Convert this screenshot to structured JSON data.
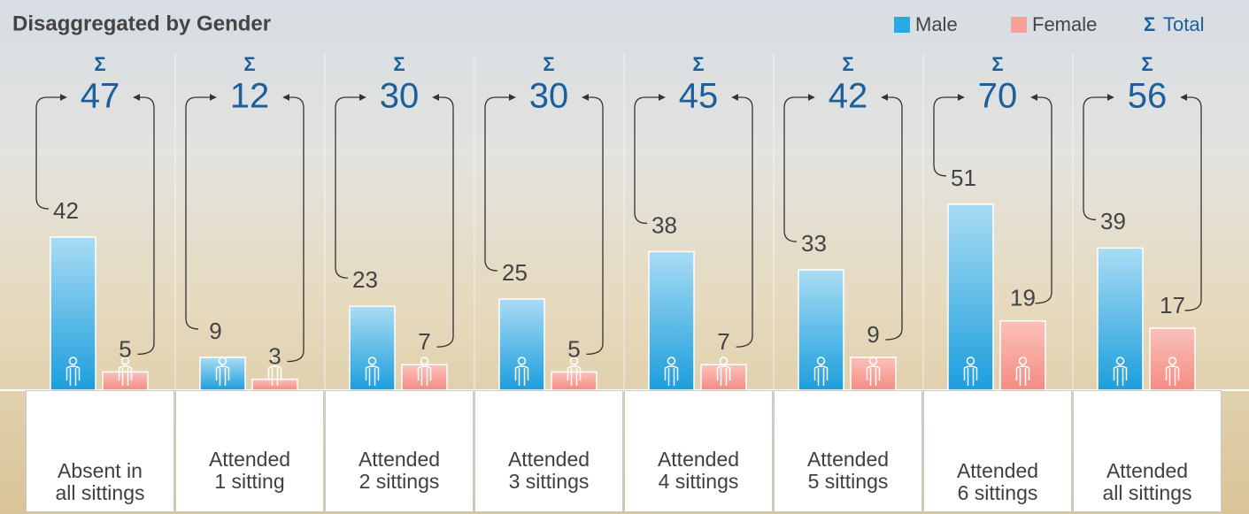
{
  "chart_data": {
    "type": "grouped-bar",
    "title": "Disaggregated by Gender",
    "categories": [
      "Absent in\nall sittings",
      "Attended\n1 sitting",
      "Attended\n2 sittings",
      "Attended\n3 sittings",
      "Attended\n4 sittings",
      "Attended\n5 sittings",
      "Attended\n6 sittings",
      "Attended\nall sittings"
    ],
    "series": [
      {
        "name": "Male",
        "color": "#29a9e1",
        "values": [
          42,
          9,
          23,
          25,
          38,
          33,
          51,
          39
        ]
      },
      {
        "name": "Female",
        "color": "#f6a29a",
        "values": [
          5,
          3,
          7,
          5,
          7,
          9,
          19,
          17
        ]
      }
    ],
    "totals": {
      "name": "Total",
      "symbol": "Σ",
      "color": "#1b5f9c",
      "values": [
        47,
        12,
        30,
        30,
        45,
        42,
        70,
        56
      ]
    }
  }
}
